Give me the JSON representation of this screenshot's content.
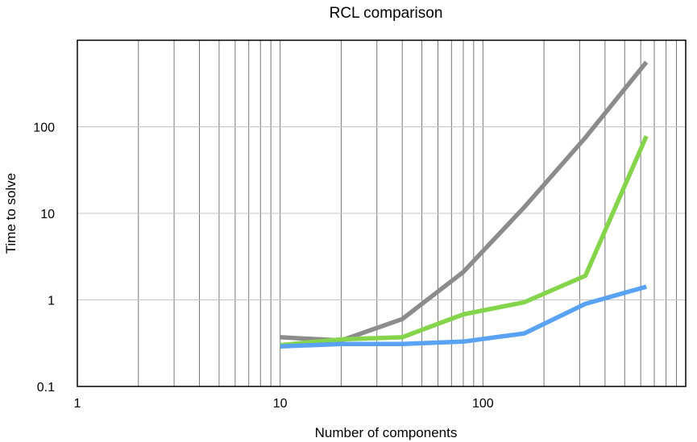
{
  "chart_data": {
    "type": "line",
    "title": "RCL comparison",
    "xlabel": "Number of components",
    "ylabel": "Time to solve",
    "x_scale": "log",
    "y_scale": "log",
    "xlim": [
      1,
      1000
    ],
    "ylim": [
      0.1,
      1000
    ],
    "x_tick_labels": [
      "1",
      "10",
      "100"
    ],
    "y_tick_labels": [
      "0.1",
      "1",
      "10",
      "100"
    ],
    "x_minor_gridlines": true,
    "y_major_gridlines": true,
    "series": [
      {
        "color": "#8c8c8c",
        "x": [
          10,
          20,
          40,
          80,
          160,
          320,
          640
        ],
        "y": [
          0.37,
          0.34,
          0.6,
          2.1,
          11.8,
          75,
          560
        ]
      },
      {
        "color": "#84d44c",
        "x": [
          10,
          20,
          40,
          80,
          160,
          320,
          640
        ],
        "y": [
          0.3,
          0.35,
          0.37,
          0.68,
          0.94,
          1.9,
          78
        ]
      },
      {
        "color": "#5aa2f4",
        "x": [
          10,
          20,
          40,
          80,
          160,
          320,
          640
        ],
        "y": [
          0.29,
          0.31,
          0.31,
          0.33,
          0.41,
          0.9,
          1.42
        ]
      }
    ]
  }
}
